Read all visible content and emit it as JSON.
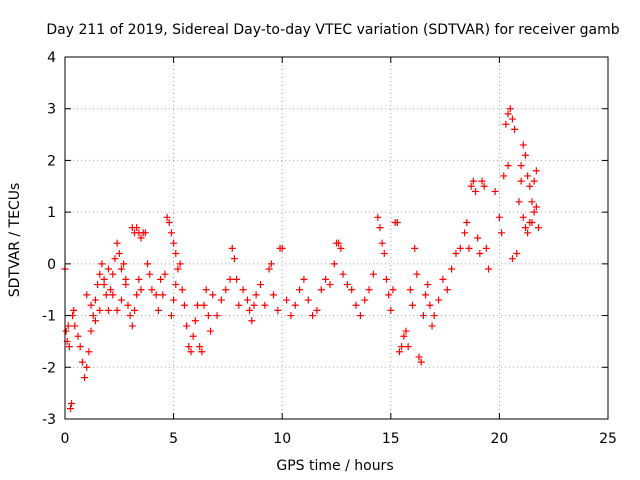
{
  "chart_data": {
    "type": "scatter",
    "title": "Day 211 of 2019, Sidereal Day-to-day VTEC variation (SDTVAR) for receiver gamb",
    "xlabel": "GPS time / hours",
    "ylabel": "SDTVAR / TECUs",
    "xlim": [
      0,
      25
    ],
    "ylim": [
      -3,
      4
    ],
    "xticks": [
      "0",
      "5",
      "10",
      "15",
      "20",
      "25"
    ],
    "yticks": [
      "-3",
      "-2",
      "-1",
      "0",
      "1",
      "2",
      "3",
      "4"
    ],
    "grid": true,
    "marker": "+",
    "color": "#ff0000",
    "series": [
      {
        "name": "SDTVAR",
        "points": [
          [
            0.0,
            -0.1
          ],
          [
            0.05,
            -1.3
          ],
          [
            0.1,
            -1.5
          ],
          [
            0.15,
            -1.2
          ],
          [
            0.2,
            -1.6
          ],
          [
            0.25,
            -2.8
          ],
          [
            0.3,
            -2.7
          ],
          [
            0.35,
            -1.0
          ],
          [
            0.4,
            -0.9
          ],
          [
            0.45,
            -1.2
          ],
          [
            0.6,
            -1.4
          ],
          [
            0.7,
            -1.6
          ],
          [
            0.8,
            -1.9
          ],
          [
            0.9,
            -2.2
          ],
          [
            1.0,
            -2.0
          ],
          [
            1.1,
            -1.7
          ],
          [
            1.2,
            -1.3
          ],
          [
            1.3,
            -1.0
          ],
          [
            1.4,
            -0.7
          ],
          [
            1.5,
            -0.4
          ],
          [
            1.6,
            -0.2
          ],
          [
            1.7,
            0.0
          ],
          [
            1.8,
            -0.3
          ],
          [
            1.9,
            -0.6
          ],
          [
            2.0,
            -0.9
          ],
          [
            2.1,
            -0.5
          ],
          [
            2.2,
            -0.2
          ],
          [
            2.3,
            0.1
          ],
          [
            2.4,
            0.4
          ],
          [
            2.5,
            0.2
          ],
          [
            1.0,
            -0.6
          ],
          [
            1.2,
            -0.8
          ],
          [
            1.4,
            -1.1
          ],
          [
            1.6,
            -0.9
          ],
          [
            1.8,
            -0.4
          ],
          [
            2.0,
            -0.1
          ],
          [
            2.2,
            -0.6
          ],
          [
            2.4,
            -0.9
          ],
          [
            2.6,
            -0.7
          ],
          [
            2.8,
            -0.3
          ],
          [
            2.6,
            -0.1
          ],
          [
            2.7,
            0.0
          ],
          [
            2.8,
            -0.4
          ],
          [
            2.9,
            -0.8
          ],
          [
            3.0,
            -1.0
          ],
          [
            3.1,
            -1.2
          ],
          [
            3.2,
            -0.9
          ],
          [
            3.3,
            -0.6
          ],
          [
            3.4,
            -0.3
          ],
          [
            3.5,
            -0.5
          ],
          [
            3.1,
            0.7
          ],
          [
            3.2,
            0.6
          ],
          [
            3.3,
            0.7
          ],
          [
            3.4,
            0.6
          ],
          [
            3.5,
            0.5
          ],
          [
            3.6,
            0.6
          ],
          [
            3.7,
            0.6
          ],
          [
            3.8,
            0.0
          ],
          [
            3.9,
            -0.2
          ],
          [
            4.0,
            -0.5
          ],
          [
            4.2,
            -0.6
          ],
          [
            4.3,
            -0.9
          ],
          [
            4.4,
            -0.3
          ],
          [
            4.5,
            -0.6
          ],
          [
            4.6,
            -0.2
          ],
          [
            4.7,
            0.9
          ],
          [
            4.8,
            0.8
          ],
          [
            4.9,
            0.6
          ],
          [
            5.0,
            0.4
          ],
          [
            5.1,
            0.2
          ],
          [
            4.9,
            -1.0
          ],
          [
            5.0,
            -0.7
          ],
          [
            5.1,
            -0.4
          ],
          [
            5.2,
            -0.1
          ],
          [
            5.3,
            0.0
          ],
          [
            5.4,
            -0.5
          ],
          [
            5.5,
            -0.8
          ],
          [
            5.6,
            -1.2
          ],
          [
            5.7,
            -1.6
          ],
          [
            5.8,
            -1.7
          ],
          [
            5.9,
            -1.4
          ],
          [
            6.0,
            -1.1
          ],
          [
            6.1,
            -0.8
          ],
          [
            6.2,
            -1.6
          ],
          [
            6.3,
            -1.7
          ],
          [
            6.4,
            -0.8
          ],
          [
            6.5,
            -0.5
          ],
          [
            6.6,
            -1.0
          ],
          [
            6.7,
            -1.3
          ],
          [
            6.8,
            -0.6
          ],
          [
            7.0,
            -1.0
          ],
          [
            7.2,
            -0.7
          ],
          [
            7.4,
            -0.5
          ],
          [
            7.6,
            -0.3
          ],
          [
            7.7,
            0.3
          ],
          [
            7.8,
            0.1
          ],
          [
            7.9,
            -0.3
          ],
          [
            8.0,
            -0.8
          ],
          [
            8.2,
            -0.5
          ],
          [
            8.4,
            -0.7
          ],
          [
            8.5,
            -0.9
          ],
          [
            8.6,
            -1.1
          ],
          [
            8.7,
            -0.8
          ],
          [
            8.8,
            -0.6
          ],
          [
            9.0,
            -0.4
          ],
          [
            9.2,
            -0.8
          ],
          [
            9.4,
            -0.1
          ],
          [
            9.5,
            0.0
          ],
          [
            9.6,
            -0.6
          ],
          [
            9.8,
            -0.9
          ],
          [
            9.9,
            0.3
          ],
          [
            10.0,
            0.3
          ],
          [
            10.2,
            -0.7
          ],
          [
            10.4,
            -1.0
          ],
          [
            10.6,
            -0.8
          ],
          [
            10.8,
            -0.5
          ],
          [
            11.0,
            -0.3
          ],
          [
            11.2,
            -0.7
          ],
          [
            11.4,
            -1.0
          ],
          [
            11.6,
            -0.9
          ],
          [
            11.8,
            -0.5
          ],
          [
            12.0,
            -0.3
          ],
          [
            12.2,
            -0.4
          ],
          [
            12.4,
            0.0
          ],
          [
            12.5,
            0.4
          ],
          [
            12.6,
            0.4
          ],
          [
            12.7,
            0.3
          ],
          [
            12.8,
            -0.2
          ],
          [
            13.0,
            -0.4
          ],
          [
            13.2,
            -0.5
          ],
          [
            13.4,
            -0.8
          ],
          [
            13.6,
            -1.0
          ],
          [
            13.8,
            -0.7
          ],
          [
            14.0,
            -0.5
          ],
          [
            14.2,
            -0.2
          ],
          [
            14.4,
            0.9
          ],
          [
            14.5,
            0.7
          ],
          [
            14.6,
            0.4
          ],
          [
            14.7,
            0.2
          ],
          [
            14.8,
            -0.3
          ],
          [
            14.9,
            -0.6
          ],
          [
            15.0,
            -0.9
          ],
          [
            15.1,
            -0.5
          ],
          [
            15.2,
            0.8
          ],
          [
            15.3,
            0.8
          ],
          [
            15.4,
            -1.7
          ],
          [
            15.5,
            -1.6
          ],
          [
            15.6,
            -1.4
          ],
          [
            15.7,
            -1.3
          ],
          [
            15.8,
            -1.6
          ],
          [
            15.9,
            -0.5
          ],
          [
            16.0,
            -0.8
          ],
          [
            16.1,
            0.3
          ],
          [
            16.2,
            -0.2
          ],
          [
            16.3,
            -1.8
          ],
          [
            16.4,
            -1.9
          ],
          [
            16.5,
            -1.0
          ],
          [
            16.6,
            -0.6
          ],
          [
            16.7,
            -0.4
          ],
          [
            16.8,
            -0.8
          ],
          [
            16.9,
            -1.2
          ],
          [
            17.0,
            -1.0
          ],
          [
            17.2,
            -0.7
          ],
          [
            17.4,
            -0.3
          ],
          [
            17.6,
            -0.5
          ],
          [
            17.8,
            -0.1
          ],
          [
            18.0,
            0.2
          ],
          [
            18.2,
            0.3
          ],
          [
            18.4,
            0.6
          ],
          [
            18.5,
            0.8
          ],
          [
            18.6,
            0.3
          ],
          [
            18.7,
            1.5
          ],
          [
            18.8,
            1.6
          ],
          [
            18.9,
            1.4
          ],
          [
            19.0,
            0.5
          ],
          [
            19.1,
            0.2
          ],
          [
            19.2,
            1.6
          ],
          [
            19.3,
            1.5
          ],
          [
            19.4,
            0.3
          ],
          [
            19.5,
            -0.1
          ],
          [
            19.8,
            1.4
          ],
          [
            20.0,
            0.9
          ],
          [
            20.1,
            0.6
          ],
          [
            20.2,
            1.7
          ],
          [
            20.3,
            2.7
          ],
          [
            20.4,
            2.9
          ],
          [
            20.5,
            3.0
          ],
          [
            20.6,
            2.8
          ],
          [
            20.7,
            2.6
          ],
          [
            20.8,
            0.2
          ],
          [
            20.6,
            0.1
          ],
          [
            20.9,
            1.2
          ],
          [
            21.0,
            1.6
          ],
          [
            21.1,
            2.3
          ],
          [
            21.2,
            2.1
          ],
          [
            21.3,
            1.7
          ],
          [
            21.4,
            1.5
          ],
          [
            21.5,
            0.8
          ],
          [
            21.6,
            1.0
          ],
          [
            21.7,
            1.8
          ],
          [
            21.1,
            0.9
          ],
          [
            21.2,
            0.7
          ],
          [
            21.3,
            0.6
          ],
          [
            21.4,
            0.8
          ],
          [
            21.5,
            1.2
          ],
          [
            21.6,
            1.6
          ],
          [
            21.7,
            1.1
          ],
          [
            21.8,
            0.7
          ],
          [
            21.0,
            1.9
          ],
          [
            20.4,
            1.9
          ]
        ]
      }
    ]
  }
}
